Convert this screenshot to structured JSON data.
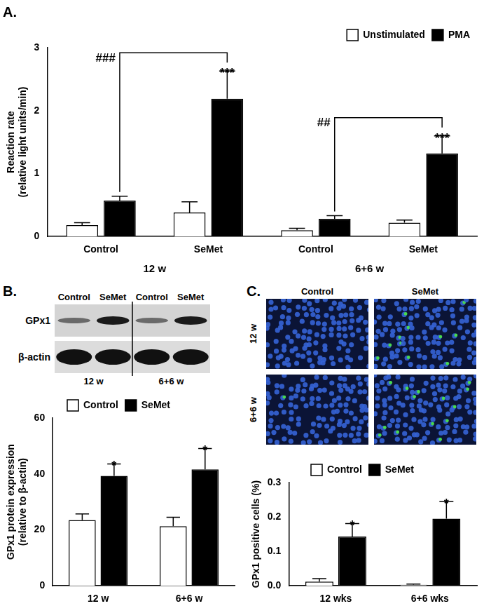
{
  "chart_data": [
    {
      "type": "bar",
      "title": "A.",
      "y_label": [
        "Reaction rate",
        "(relative light units/min)"
      ],
      "categories": [
        "Control",
        "SeMet",
        "Control",
        "SeMet"
      ],
      "groups": [
        "12 w",
        "6+6 w"
      ],
      "series": [
        {
          "name": "Unstimulated",
          "color": "#ffffff",
          "values": [
            0.18,
            0.38,
            0.1,
            0.22
          ],
          "errors": [
            0.04,
            0.17,
            0.03,
            0.04
          ]
        },
        {
          "name": "PMA",
          "color": "#000000",
          "values": [
            0.57,
            2.19,
            0.28,
            1.32
          ],
          "errors": [
            0.07,
            0.44,
            0.05,
            0.28
          ]
        }
      ],
      "ylim": [
        0,
        3
      ],
      "yticks": [
        0,
        1,
        2,
        3
      ],
      "grid": false,
      "legend": "upper right",
      "annotations": [
        {
          "text": "***",
          "series": "PMA",
          "category": 1
        },
        {
          "text": "***",
          "series": "PMA",
          "category": 3
        }
      ],
      "brackets": [
        {
          "text": "###",
          "series": "PMA",
          "categories": [
            0,
            1
          ]
        },
        {
          "text": "##",
          "series": "PMA",
          "categories": [
            2,
            3
          ]
        }
      ]
    },
    {
      "type": "bar",
      "y_label": [
        "GPx1 protein expression",
        "(relative to β-actin)"
      ],
      "categories": [
        "12 w",
        "6+6 w"
      ],
      "series": [
        {
          "name": "Control",
          "color": "#ffffff",
          "values": [
            23.5,
            21.3
          ],
          "errors": [
            2.2,
            3.2
          ]
        },
        {
          "name": "SeMet",
          "color": "#000000",
          "values": [
            39.3,
            41.6
          ],
          "errors": [
            4.3,
            7.5
          ]
        }
      ],
      "ylim": [
        0,
        60
      ],
      "yticks": [
        0,
        20,
        40,
        60
      ],
      "grid": false,
      "legend": "upper center",
      "annotations": [
        {
          "text": "*",
          "series": "SeMet",
          "category": 0
        },
        {
          "text": "*",
          "series": "SeMet",
          "category": 1
        }
      ]
    },
    {
      "type": "bar",
      "y_label": "GPx1 positive cells (%)",
      "categories": [
        "12 wks",
        "6+6 wks"
      ],
      "series": [
        {
          "name": "Control",
          "color": "#ffffff",
          "values": [
            0.012,
            0.003
          ],
          "errors": [
            0.009,
            0.002
          ]
        },
        {
          "name": "SeMet",
          "color": "#000000",
          "values": [
            0.143,
            0.195
          ],
          "errors": [
            0.038,
            0.05
          ]
        }
      ],
      "ylim": [
        0,
        0.3
      ],
      "yticks": [
        {
          "value": 0,
          "label": "0.0"
        },
        {
          "value": 0.1,
          "label": "0.1"
        },
        {
          "value": 0.2,
          "label": "0.2"
        },
        {
          "value": 0.3,
          "label": "0.3"
        }
      ],
      "grid": false,
      "legend": "upper center",
      "annotations": [
        {
          "text": "*",
          "series": "SeMet",
          "category": 0
        },
        {
          "text": "*",
          "series": "SeMet",
          "category": 1
        }
      ]
    }
  ],
  "blot": {
    "panel_label": "B.",
    "columns": [
      "Control",
      "SeMet",
      "Control",
      "SeMet"
    ],
    "rows": [
      "GPx1",
      "β-actin"
    ],
    "groups": [
      "12 w",
      "6+6 w"
    ]
  },
  "micrographs": {
    "panel_label": "C.",
    "columns": [
      "Control",
      "SeMet"
    ],
    "rows": [
      "12 w",
      "6+6 w"
    ]
  }
}
